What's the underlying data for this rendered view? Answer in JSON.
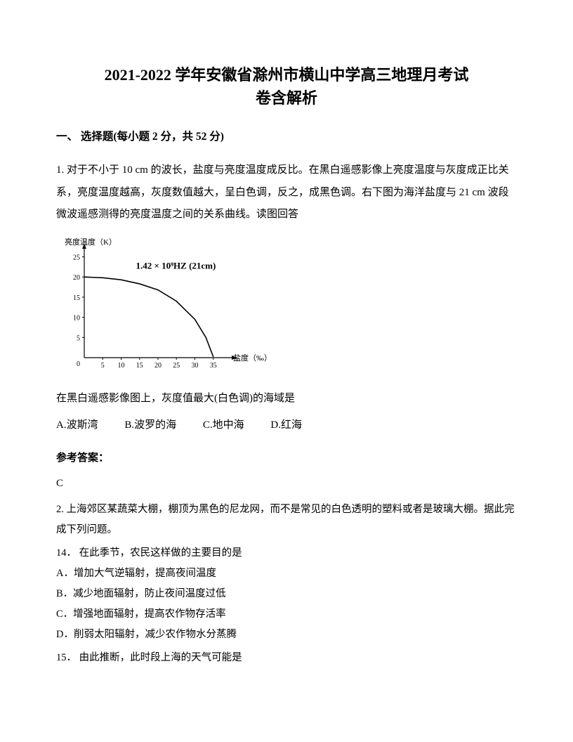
{
  "title_line1": "2021-2022 学年安徽省滁州市横山中学高三地理月考试",
  "title_line2": "卷含解析",
  "section1_header": "一、 选择题(每小题 2 分，共 52 分)",
  "q1": {
    "text": "1. 对于不小于 10 cm 的波长，盐度与亮度温度成反比。在黑白遥感影像上亮度温度与灰度成正比关系，亮度温度越高，灰度数值越大，呈白色调，反之，成黑色调。右下图为海洋盐度与 21 cm 波段微波遥感测得的亮度温度之间的关系曲线。读图回答",
    "chart": {
      "type": "line",
      "y_label": "亮度温度（K）",
      "x_label": "盐度（‰）",
      "y_ticks": [
        0,
        5,
        10,
        15,
        20,
        25
      ],
      "x_ticks": [
        5,
        10,
        15,
        20,
        25,
        30,
        35
      ],
      "annotation": "1.42 × 10⁹HZ    (21cm)",
      "series_color": "#000000",
      "axis_color": "#000000",
      "background": "#ffffff",
      "x_range": [
        0,
        40
      ],
      "y_range": [
        0,
        27
      ],
      "points": [
        [
          0,
          20
        ],
        [
          5,
          19.8
        ],
        [
          10,
          19.3
        ],
        [
          15,
          18.3
        ],
        [
          20,
          16.8
        ],
        [
          25,
          14
        ],
        [
          30,
          9.5
        ],
        [
          33,
          5
        ],
        [
          35,
          0.2
        ]
      ],
      "tick_fontsize": 10,
      "label_fontsize": 11
    },
    "sub_question": "在黑白遥感影像图上，灰度值最大(白色调)的海域是",
    "options": {
      "A": "A.波斯湾",
      "B": "B.波罗的海",
      "C": "C.地中海",
      "D": "D.红海"
    },
    "answer_label": "参考答案：",
    "answer": "C"
  },
  "q2": {
    "stem": "2. 上海郊区某蔬菜大棚，棚顶为黑色的尼龙网，而不是常见的白色透明的塑料或者是玻璃大棚。据此完成下列问题。",
    "sub14": "14．  在此季节，农民这样做的主要目的是",
    "opts14": {
      "A": "A．增加大气逆辐射，提高夜间温度",
      "B": "B．减少地面辐射，防止夜间温度过低",
      "C": "C．增强地面辐射，提高农作物存活率",
      "D": "D．削弱太阳辐射，减少农作物水分蒸腾"
    },
    "sub15": "15．  由此推断，此时段上海的天气可能是"
  }
}
